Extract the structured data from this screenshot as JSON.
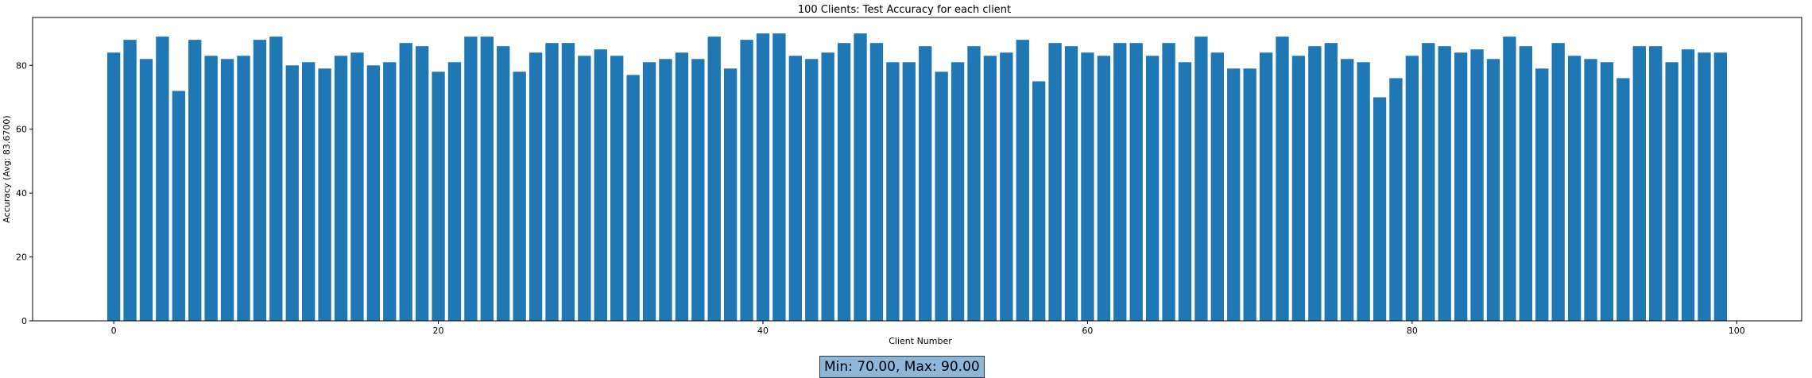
{
  "chart_data": {
    "type": "bar",
    "title": "100 Clients: Test Accuracy for each client",
    "xlabel": "Client Number",
    "ylabel": "Accuracy (Avg: 83.6700)",
    "xlim": [
      -5,
      104
    ],
    "ylim": [
      0,
      95
    ],
    "xticks": [
      0,
      20,
      40,
      60,
      80,
      100
    ],
    "yticks": [
      0,
      20,
      40,
      60,
      80
    ],
    "bar_color": "#1f77b4",
    "grid": false,
    "x": [
      0,
      1,
      2,
      3,
      4,
      5,
      6,
      7,
      8,
      9,
      10,
      11,
      12,
      13,
      14,
      15,
      16,
      17,
      18,
      19,
      20,
      21,
      22,
      23,
      24,
      25,
      26,
      27,
      28,
      29,
      30,
      31,
      32,
      33,
      34,
      35,
      36,
      37,
      38,
      39,
      40,
      41,
      42,
      43,
      44,
      45,
      46,
      47,
      48,
      49,
      50,
      51,
      52,
      53,
      54,
      55,
      56,
      57,
      58,
      59,
      60,
      61,
      62,
      63,
      64,
      65,
      66,
      67,
      68,
      69,
      70,
      71,
      72,
      73,
      74,
      75,
      76,
      77,
      78,
      79,
      80,
      81,
      82,
      83,
      84,
      85,
      86,
      87,
      88,
      89,
      90,
      91,
      92,
      93,
      94,
      95,
      96,
      97,
      98,
      99
    ],
    "values": [
      84,
      88,
      82,
      89,
      72,
      88,
      83,
      82,
      83,
      88,
      89,
      80,
      81,
      79,
      83,
      84,
      80,
      81,
      87,
      86,
      78,
      81,
      89,
      89,
      86,
      78,
      84,
      87,
      87,
      83,
      85,
      83,
      77,
      81,
      82,
      84,
      82,
      89,
      79,
      88,
      90,
      90,
      83,
      82,
      84,
      87,
      90,
      87,
      81,
      81,
      86,
      78,
      81,
      86,
      83,
      84,
      88,
      75,
      87,
      86,
      84,
      83,
      87,
      87,
      83,
      87,
      81,
      89,
      84,
      79,
      79,
      84,
      89,
      83,
      86,
      87,
      82,
      81,
      70,
      76,
      83,
      87,
      86,
      84,
      85,
      82,
      89,
      86,
      79,
      87,
      83,
      82,
      81,
      76,
      86,
      86,
      81,
      85,
      84,
      84
    ]
  },
  "stats_box": {
    "text": "Min: 70.00, Max: 90.00",
    "color": "#8db7d8"
  }
}
